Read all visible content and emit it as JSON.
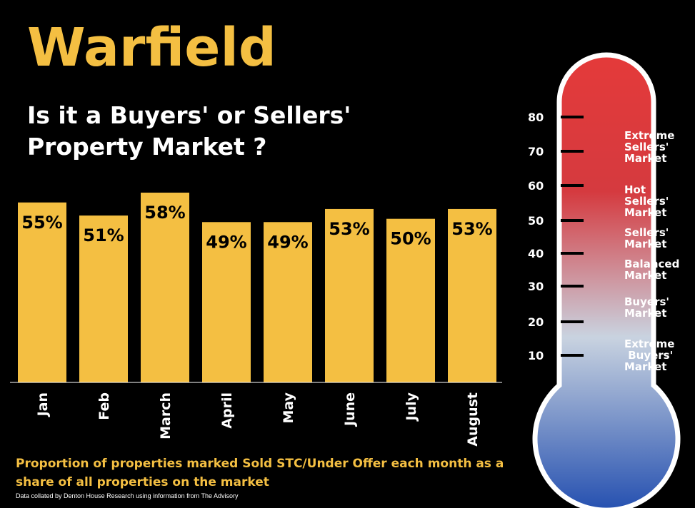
{
  "header": {
    "title": "Warfield",
    "subtitle": "Is it a Buyers' or Sellers' Property Market ?"
  },
  "chart_data": {
    "type": "bar",
    "categories": [
      "Jan",
      "Feb",
      "March",
      "April",
      "May",
      "June",
      "July",
      "August"
    ],
    "values": [
      55,
      51,
      58,
      49,
      49,
      53,
      50,
      53
    ],
    "data_labels": [
      "55%",
      "51%",
      "58%",
      "49%",
      "49%",
      "53%",
      "50%",
      "53%"
    ],
    "ylim": [
      0,
      100
    ],
    "bar_color": "#f4bf42",
    "title": "",
    "xlabel": "",
    "ylabel": ""
  },
  "caption": "Proportion of properties marked Sold STC/Under Offer each month as a share of all properties on the market",
  "source": "Data collated by Denton House Research using information from The Advisory",
  "thermometer": {
    "ticks": [
      "80",
      "70",
      "60",
      "50",
      "40",
      "30",
      "20",
      "10"
    ],
    "labels": [
      "Extreme\nSellers'\nMarket",
      "Hot\nSellers'\nMarket",
      "Sellers'\nMarket",
      "Balanced\nMarket",
      "Buyers'\nMarket",
      "Extreme\n Buyers'\nMarket"
    ],
    "colors": {
      "top": "#e43a3a",
      "middle": "#c9d3e0",
      "bottom": "#2550b0"
    }
  }
}
